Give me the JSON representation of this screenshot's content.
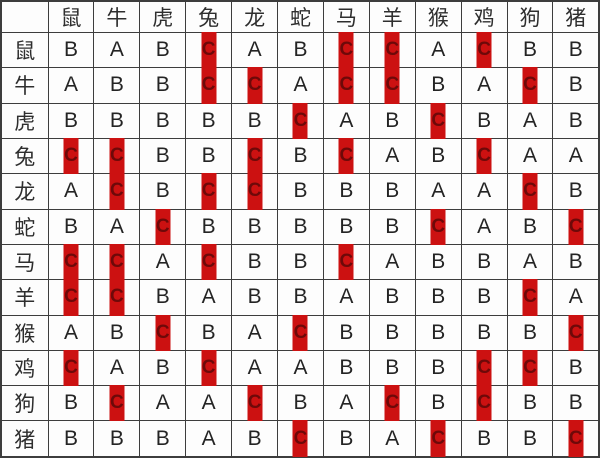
{
  "chart_data": {
    "type": "table",
    "title": "",
    "corner_label": "",
    "column_headers": [
      "鼠",
      "牛",
      "虎",
      "兔",
      "龙",
      "蛇",
      "马",
      "羊",
      "猴",
      "鸡",
      "狗",
      "猪"
    ],
    "row_headers": [
      "鼠",
      "牛",
      "虎",
      "兔",
      "龙",
      "蛇",
      "马",
      "羊",
      "猴",
      "鸡",
      "狗",
      "猪"
    ],
    "cells": [
      [
        "B",
        "A",
        "B",
        "C",
        "A",
        "B",
        "C",
        "C",
        "A",
        "C",
        "B",
        "B"
      ],
      [
        "A",
        "B",
        "B",
        "C",
        "C",
        "A",
        "C",
        "C",
        "B",
        "A",
        "C",
        "B"
      ],
      [
        "B",
        "B",
        "B",
        "B",
        "B",
        "C",
        "A",
        "B",
        "C",
        "B",
        "A",
        "B"
      ],
      [
        "C",
        "C",
        "B",
        "B",
        "C",
        "B",
        "C",
        "A",
        "B",
        "C",
        "A",
        "A"
      ],
      [
        "A",
        "C",
        "B",
        "C",
        "C",
        "B",
        "B",
        "B",
        "A",
        "A",
        "C",
        "B"
      ],
      [
        "B",
        "A",
        "C",
        "B",
        "B",
        "B",
        "B",
        "B",
        "C",
        "A",
        "B",
        "C"
      ],
      [
        "C",
        "C",
        "A",
        "C",
        "B",
        "B",
        "C",
        "A",
        "B",
        "B",
        "A",
        "B"
      ],
      [
        "C",
        "C",
        "B",
        "A",
        "B",
        "B",
        "A",
        "B",
        "B",
        "B",
        "C",
        "A"
      ],
      [
        "A",
        "B",
        "C",
        "B",
        "A",
        "C",
        "B",
        "B",
        "B",
        "B",
        "B",
        "C"
      ],
      [
        "C",
        "A",
        "B",
        "C",
        "A",
        "A",
        "B",
        "B",
        "B",
        "C",
        "C",
        "B"
      ],
      [
        "B",
        "C",
        "A",
        "A",
        "C",
        "B",
        "A",
        "C",
        "B",
        "C",
        "B",
        "B"
      ],
      [
        "B",
        "B",
        "B",
        "A",
        "B",
        "C",
        "B",
        "A",
        "C",
        "B",
        "B",
        "C"
      ]
    ],
    "highlighted_value": "C",
    "colors": {
      "highlight_bar": "#cc1111",
      "highlight_letter": "#6e0909",
      "grid_line": "#3d3d3d",
      "text": "#242424",
      "background": "#fdfdfd"
    }
  }
}
